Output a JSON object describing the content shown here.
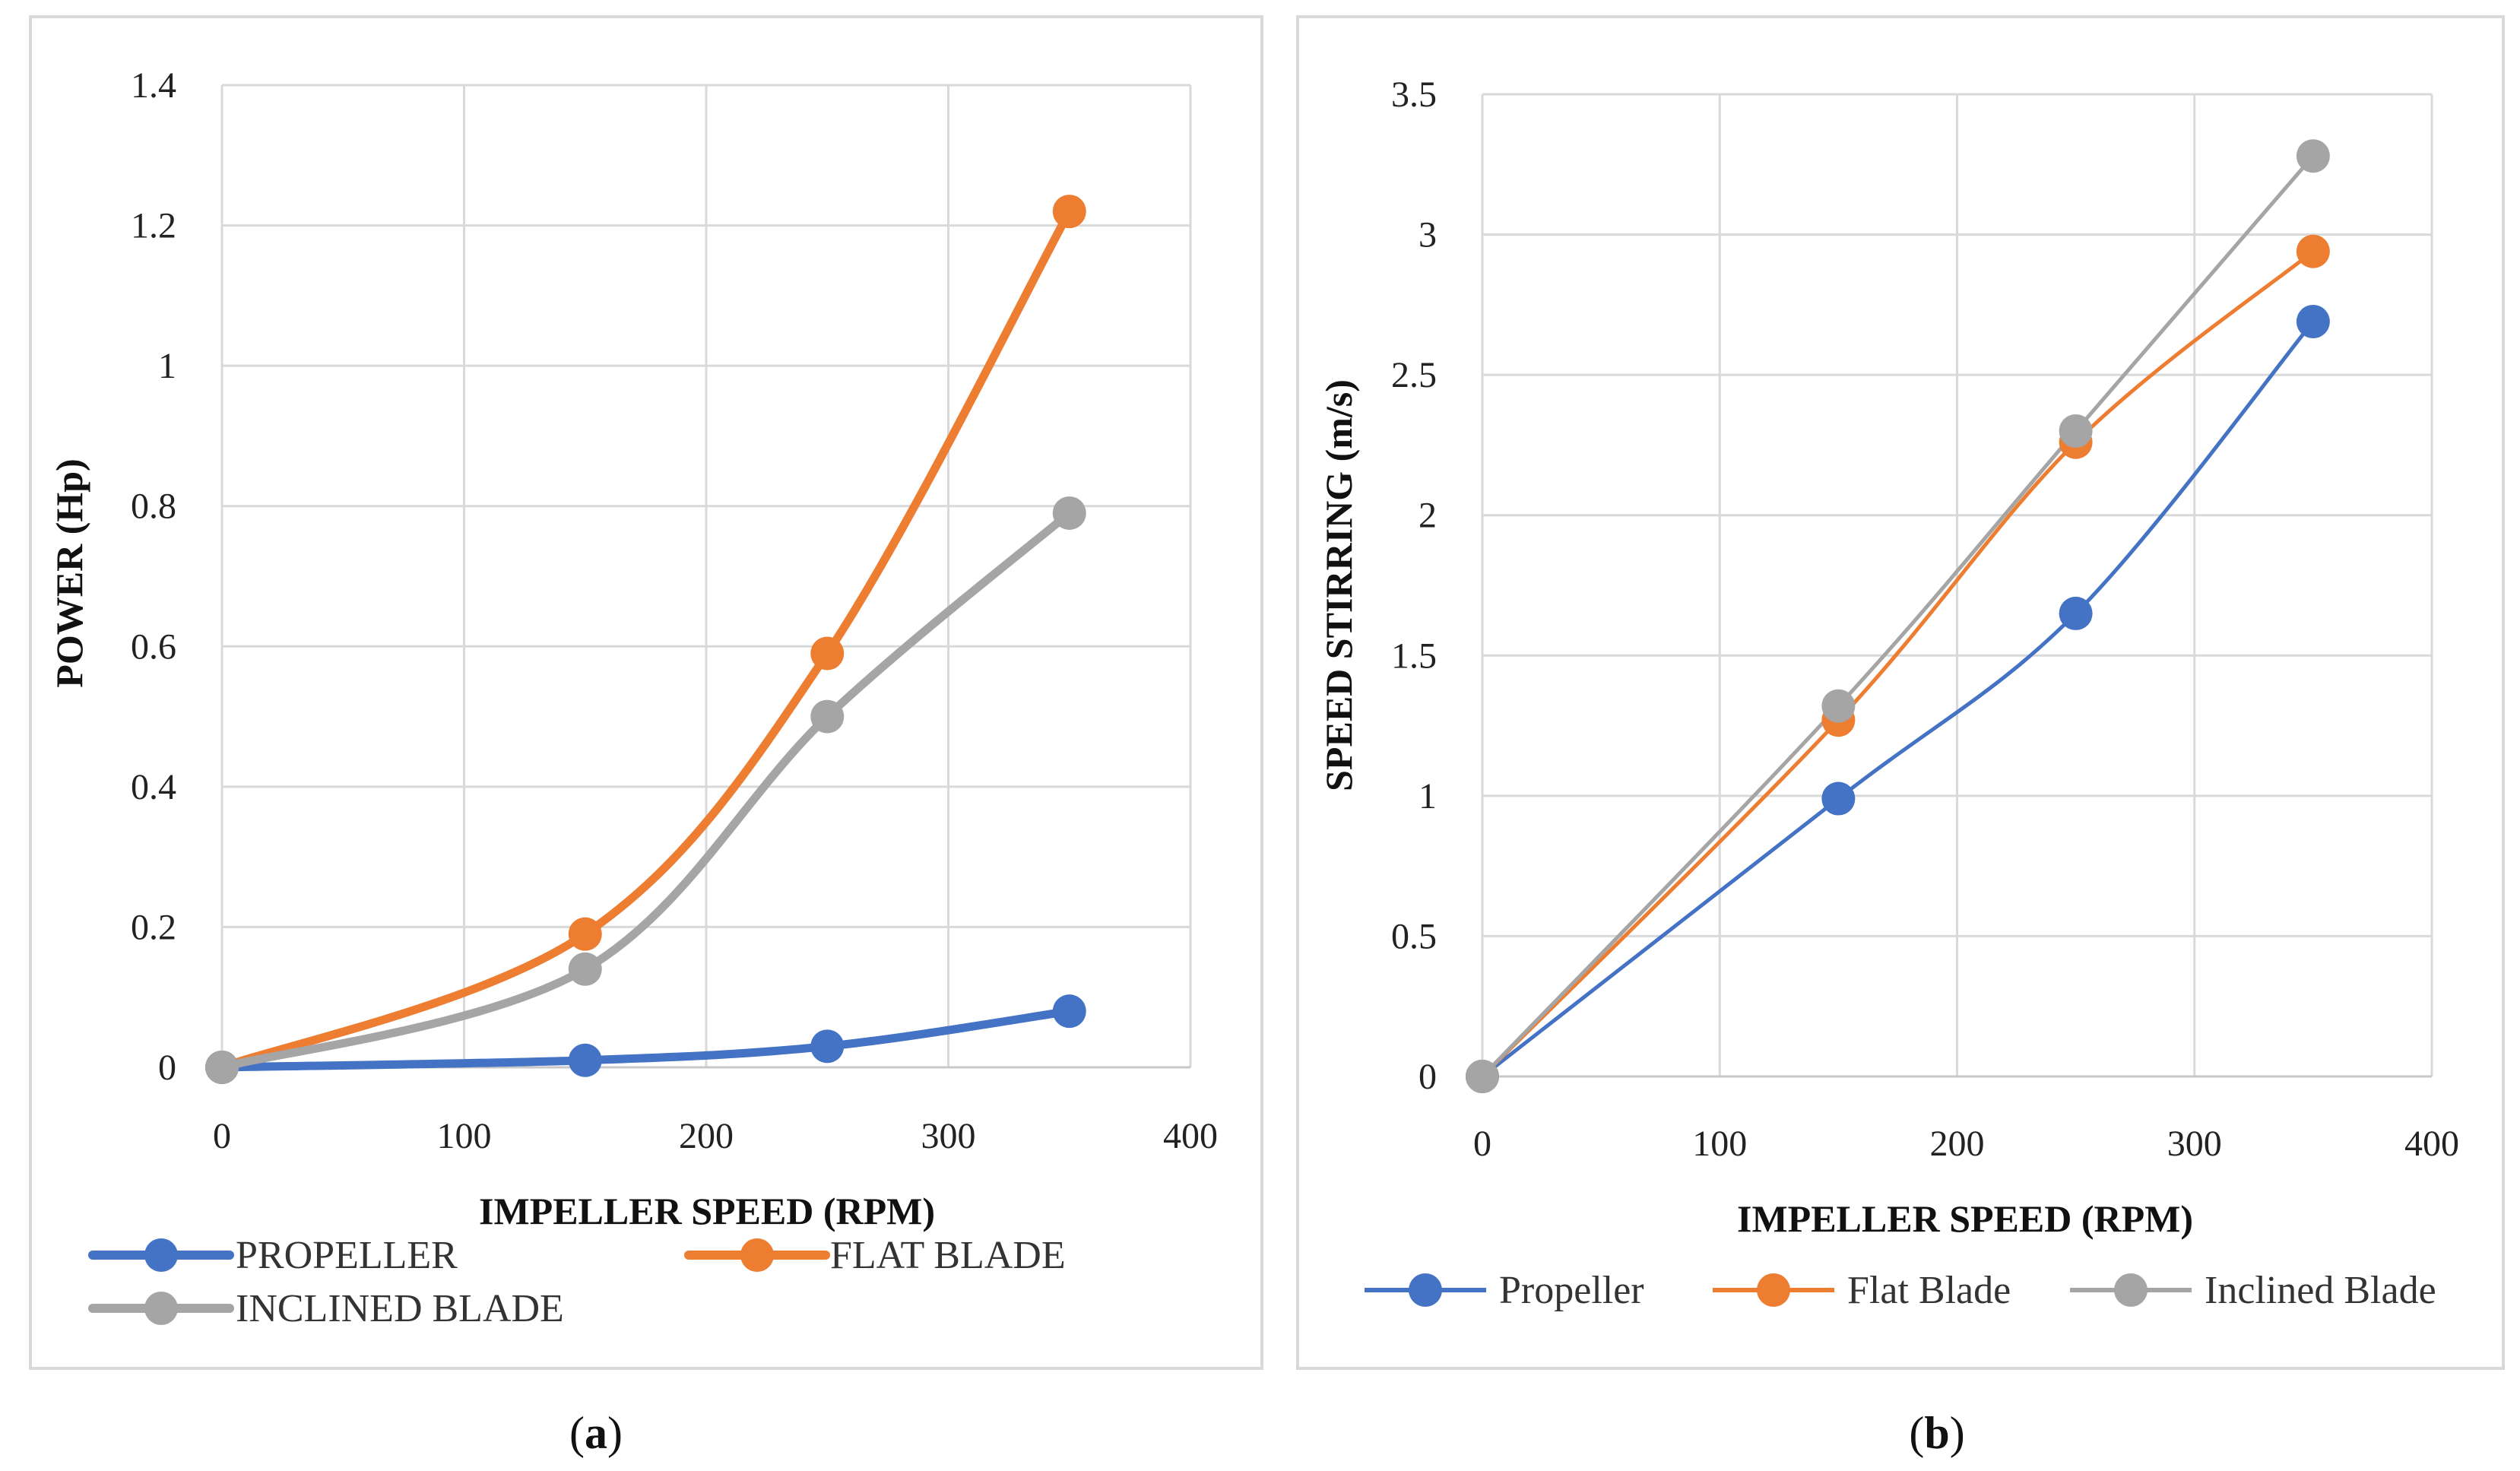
{
  "colors": {
    "propeller": "#4472C4",
    "flat": "#ED7D31",
    "inclined": "#A5A5A5"
  },
  "chart_data": [
    {
      "type": "line",
      "panel_label_open": "(",
      "panel_label_letter": "a",
      "panel_label_close": ")",
      "xlabel": "IMPELLER SPEED (RPM)",
      "ylabel": "POWER (Hp)",
      "xlim": [
        0,
        400
      ],
      "ylim": [
        0,
        1.4
      ],
      "x_ticks": [
        0,
        100,
        200,
        300,
        400
      ],
      "x_tick_labels": [
        "0",
        "100",
        "200",
        "300",
        "400"
      ],
      "y_ticks": [
        0,
        0.2,
        0.4,
        0.6,
        0.8,
        1,
        1.2,
        1.4
      ],
      "y_tick_labels": [
        "0",
        "0.2",
        "0.4",
        "0.6",
        "0.8",
        "1",
        "1.2",
        "1.4"
      ],
      "x": [
        0,
        150,
        250,
        350
      ],
      "series": [
        {
          "name": "PROPELLER",
          "key": "propeller",
          "values": [
            0,
            0.01,
            0.03,
            0.08
          ]
        },
        {
          "name": "FLAT BLADE",
          "key": "flat",
          "values": [
            0,
            0.19,
            0.59,
            1.22
          ]
        },
        {
          "name": "INCLINED BLADE",
          "key": "inclined",
          "values": [
            0,
            0.14,
            0.5,
            0.79
          ]
        }
      ],
      "smooth": true,
      "grid": true,
      "legend_position": "bottom"
    },
    {
      "type": "line",
      "panel_label_open": "(",
      "panel_label_letter": "b",
      "panel_label_close": ")",
      "xlabel": "IMPELLER SPEED (RPM)",
      "ylabel": "SPEED STIRRING  (m/s)",
      "xlim": [
        0,
        400
      ],
      "ylim": [
        0,
        3.5
      ],
      "x_ticks": [
        0,
        100,
        200,
        300,
        400
      ],
      "x_tick_labels": [
        "0",
        "100",
        "200",
        "300",
        "400"
      ],
      "y_ticks": [
        0,
        0.5,
        1,
        1.5,
        2,
        2.5,
        3,
        3.5
      ],
      "y_tick_labels": [
        "0",
        "0.5",
        "1",
        "1.5",
        "2",
        "2.5",
        "3",
        "3.5"
      ],
      "x": [
        0,
        150,
        250,
        350
      ],
      "series": [
        {
          "name": "Propeller",
          "key": "propeller",
          "values": [
            0,
            0.99,
            1.65,
            2.69
          ]
        },
        {
          "name": "Flat Blade",
          "key": "flat",
          "values": [
            0,
            1.27,
            2.26,
            2.94
          ]
        },
        {
          "name": "Inclined Blade",
          "key": "inclined",
          "values": [
            0,
            1.32,
            2.3,
            3.28
          ]
        }
      ],
      "smooth": true,
      "grid": true,
      "legend_position": "bottom"
    }
  ]
}
